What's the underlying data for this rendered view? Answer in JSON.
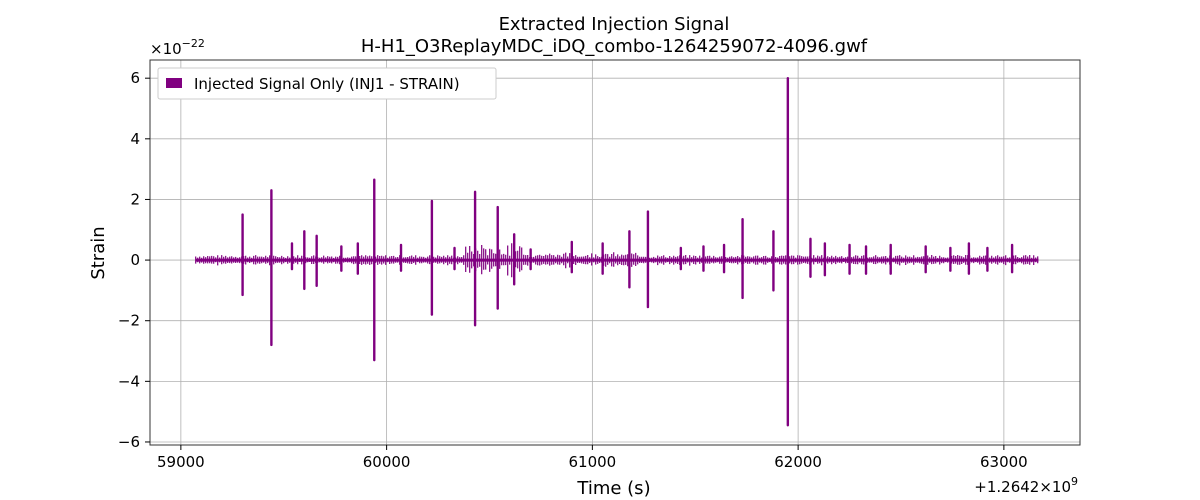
{
  "chart_data": {
    "type": "line",
    "title": "Extracted Injection Signal",
    "subtitle": "H-H1_O3ReplayMDC_iDQ_combo-1264259072-4096.gwf",
    "xlabel": "Time (s)",
    "ylabel": "Strain",
    "x_offset_label": "+1.2642×10",
    "x_offset_exponent": "9",
    "y_multiplier_label": "×10",
    "y_multiplier_exponent": "−22",
    "xlim": [
      58850,
      63370
    ],
    "ylim": [
      -6.1,
      6.6
    ],
    "x_ticks": [
      59000,
      60000,
      61000,
      62000,
      63000
    ],
    "x_tick_labels": [
      "59000",
      "60000",
      "61000",
      "62000",
      "63000"
    ],
    "y_ticks": [
      -6,
      -4,
      -2,
      0,
      2,
      4,
      6
    ],
    "y_tick_labels": [
      "−6",
      "−4",
      "−2",
      "0",
      "2",
      "4",
      "6"
    ],
    "grid": true,
    "legend_position": "top-left",
    "series": [
      {
        "name": "Injected Signal Only (INJ1 - STRAIN)",
        "color": "#800080",
        "time_range": [
          59072,
          63168
        ],
        "baseline_envelope": 0.12,
        "spikes": [
          {
            "t": 59300,
            "pos": 1.5,
            "neg": -1.15
          },
          {
            "t": 59440,
            "pos": 2.3,
            "neg": -2.8
          },
          {
            "t": 59540,
            "pos": 0.55,
            "neg": -0.3
          },
          {
            "t": 59600,
            "pos": 0.95,
            "neg": -0.95
          },
          {
            "t": 59660,
            "pos": 0.8,
            "neg": -0.85
          },
          {
            "t": 59780,
            "pos": 0.45,
            "neg": -0.35
          },
          {
            "t": 59860,
            "pos": 0.55,
            "neg": -0.45
          },
          {
            "t": 59940,
            "pos": 2.65,
            "neg": -3.3
          },
          {
            "t": 60070,
            "pos": 0.5,
            "neg": -0.35
          },
          {
            "t": 60220,
            "pos": 1.95,
            "neg": -1.8
          },
          {
            "t": 60330,
            "pos": 0.4,
            "neg": -0.3
          },
          {
            "t": 60430,
            "pos": 2.25,
            "neg": -2.15
          },
          {
            "t": 60540,
            "pos": 1.75,
            "neg": -1.6
          },
          {
            "t": 60620,
            "pos": 0.85,
            "neg": -0.8
          },
          {
            "t": 60700,
            "pos": 0.35,
            "neg": -0.3
          },
          {
            "t": 60900,
            "pos": 0.6,
            "neg": -0.4
          },
          {
            "t": 61050,
            "pos": 0.55,
            "neg": -0.45
          },
          {
            "t": 61180,
            "pos": 0.95,
            "neg": -0.9
          },
          {
            "t": 61270,
            "pos": 1.6,
            "neg": -1.55
          },
          {
            "t": 61430,
            "pos": 0.4,
            "neg": -0.3
          },
          {
            "t": 61540,
            "pos": 0.45,
            "neg": -0.35
          },
          {
            "t": 61640,
            "pos": 0.5,
            "neg": -0.4
          },
          {
            "t": 61730,
            "pos": 1.35,
            "neg": -1.25
          },
          {
            "t": 61880,
            "pos": 0.95,
            "neg": -1.0
          },
          {
            "t": 61950,
            "pos": 6.0,
            "neg": -5.45
          },
          {
            "t": 62060,
            "pos": 0.7,
            "neg": -0.55
          },
          {
            "t": 62130,
            "pos": 0.55,
            "neg": -0.5
          },
          {
            "t": 62250,
            "pos": 0.5,
            "neg": -0.45
          },
          {
            "t": 62330,
            "pos": 0.45,
            "neg": -0.45
          },
          {
            "t": 62450,
            "pos": 0.5,
            "neg": -0.45
          },
          {
            "t": 62620,
            "pos": 0.45,
            "neg": -0.4
          },
          {
            "t": 62740,
            "pos": 0.4,
            "neg": -0.35
          },
          {
            "t": 62830,
            "pos": 0.55,
            "neg": -0.45
          },
          {
            "t": 62920,
            "pos": 0.4,
            "neg": -0.35
          },
          {
            "t": 63040,
            "pos": 0.5,
            "neg": -0.4
          }
        ]
      }
    ]
  }
}
